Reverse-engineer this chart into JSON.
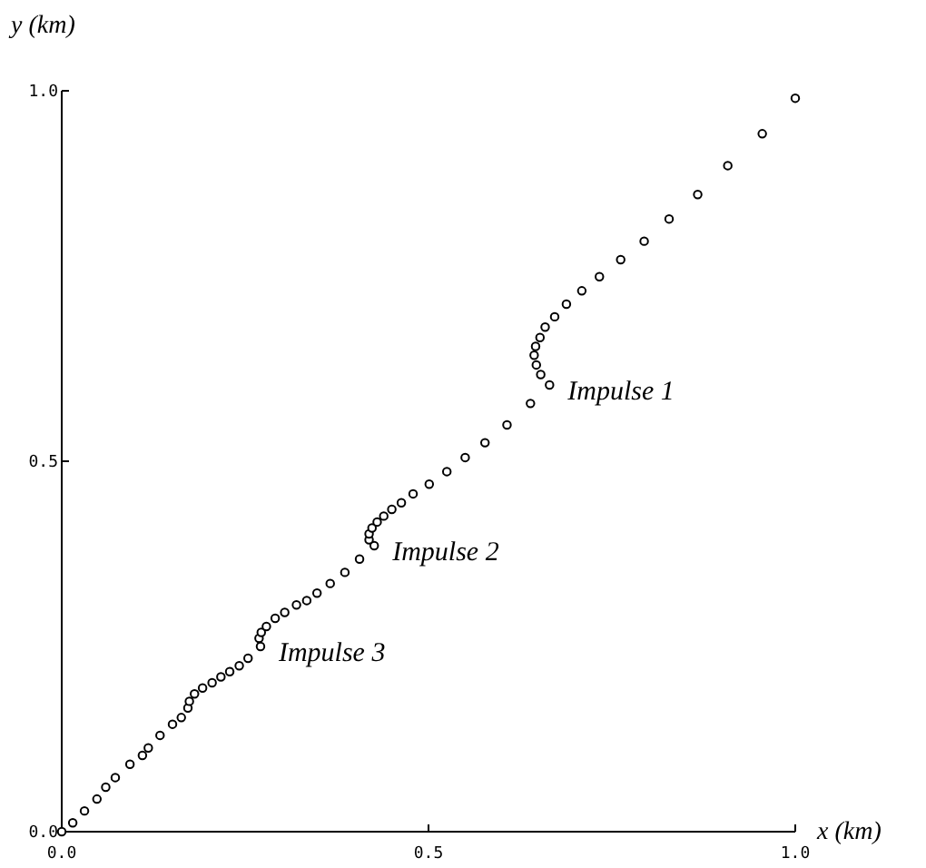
{
  "chart_data": {
    "type": "scatter",
    "xlabel": "x (km)",
    "ylabel": "y (km)",
    "marker": "circle",
    "grid": false,
    "xlim": [
      0,
      1.0
    ],
    "ylim": [
      0,
      1.0
    ],
    "xticks": [
      {
        "value": 0,
        "label": "0.0"
      },
      0.5,
      {
        "value": 1,
        "label": "1.0"
      }
    ],
    "yticks": [
      {
        "value": 0,
        "label": "0.0"
      },
      0.5,
      {
        "value": 1,
        "label": "1.0"
      }
    ],
    "series": [
      {
        "color": "#000000",
        "x": [
          0,
          0.015,
          0.031,
          0.048,
          0.06,
          0.073,
          0.093,
          0.11,
          0.118,
          0.134,
          0.151,
          0.163,
          0.172,
          0.174,
          0.181,
          0.192,
          0.205,
          0.217,
          0.229,
          0.242,
          0.254,
          0.271,
          0.269,
          0.272,
          0.279,
          0.291,
          0.304,
          0.32,
          0.334,
          0.348,
          0.366,
          0.386,
          0.406,
          0.426,
          0.419,
          0.419,
          0.423,
          0.43,
          0.439,
          0.45,
          0.463,
          0.479,
          0.501,
          0.525,
          0.55,
          0.577,
          0.607,
          0.639,
          0.665,
          0.653,
          0.647,
          0.644,
          0.646,
          0.652,
          0.659,
          0.672,
          0.688,
          0.709,
          0.733,
          0.762,
          0.794,
          0.828,
          0.867,
          0.908,
          0.955,
          1.0
        ],
        "values": [
          0,
          0.012,
          0.028,
          0.044,
          0.06,
          0.073,
          0.091,
          0.103,
          0.113,
          0.13,
          0.145,
          0.154,
          0.167,
          0.176,
          0.186,
          0.194,
          0.201,
          0.209,
          0.216,
          0.224,
          0.234,
          0.25,
          0.261,
          0.269,
          0.277,
          0.288,
          0.296,
          0.306,
          0.312,
          0.322,
          0.335,
          0.35,
          0.368,
          0.386,
          0.394,
          0.402,
          0.41,
          0.418,
          0.426,
          0.435,
          0.444,
          0.456,
          0.469,
          0.486,
          0.505,
          0.525,
          0.549,
          0.578,
          0.603,
          0.617,
          0.63,
          0.643,
          0.655,
          0.667,
          0.681,
          0.695,
          0.712,
          0.73,
          0.749,
          0.772,
          0.797,
          0.827,
          0.86,
          0.899,
          0.942,
          0.99
        ]
      }
    ],
    "annotations": [
      {
        "text": "Impulse 1",
        "x": 0.665,
        "y": 0.603
      },
      {
        "text": "Impulse 2",
        "x": 0.426,
        "y": 0.386
      },
      {
        "text": "Impulse 3",
        "x": 0.271,
        "y": 0.25
      }
    ]
  }
}
